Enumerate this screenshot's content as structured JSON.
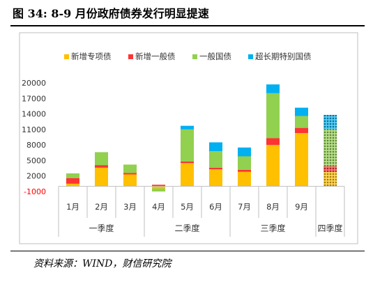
{
  "figure": {
    "title": "图 34: 8-9 月份政府债券发行明显提速",
    "source": "资料来源：WIND，财信研究院"
  },
  "chart_data": {
    "type": "bar",
    "stacked": true,
    "categories": [
      "1月",
      "2月",
      "3月",
      "4月",
      "5月",
      "6月",
      "7月",
      "8月",
      "9月",
      ""
    ],
    "groups": [
      {
        "label": "一季度",
        "span": 3
      },
      {
        "label": "二季度",
        "span": 3
      },
      {
        "label": "三季度",
        "span": 3
      },
      {
        "label": "四季度",
        "span": 1
      }
    ],
    "series": [
      {
        "name": "新增专项债",
        "color": "#FFC000",
        "values": [
          500,
          3600,
          2300,
          -400,
          4500,
          3300,
          2800,
          8000,
          10300,
          2800
        ]
      },
      {
        "name": "新增一般债",
        "color": "#FF3333",
        "values": [
          1100,
          500,
          300,
          300,
          300,
          300,
          400,
          1300,
          1000,
          1100
        ]
      },
      {
        "name": "一般国债",
        "color": "#92D050",
        "values": [
          900,
          2500,
          1600,
          -600,
          6200,
          3200,
          2600,
          8700,
          2300,
          7200
        ]
      },
      {
        "name": "超长期特别国债",
        "color": "#00B0F0",
        "values": [
          0,
          0,
          0,
          0,
          700,
          1700,
          1700,
          1700,
          1600,
          2700
        ]
      }
    ],
    "hatched_categories": [
      ""
    ],
    "ylim": [
      -1000,
      20000
    ],
    "yticks": [
      "-1000",
      "2000",
      "5000",
      "8000",
      "11000",
      "14000",
      "17000",
      "20000"
    ],
    "ytick_values": [
      -1000,
      2000,
      5000,
      8000,
      11000,
      14000,
      17000,
      20000
    ],
    "legend_position": "top",
    "grid": false
  }
}
